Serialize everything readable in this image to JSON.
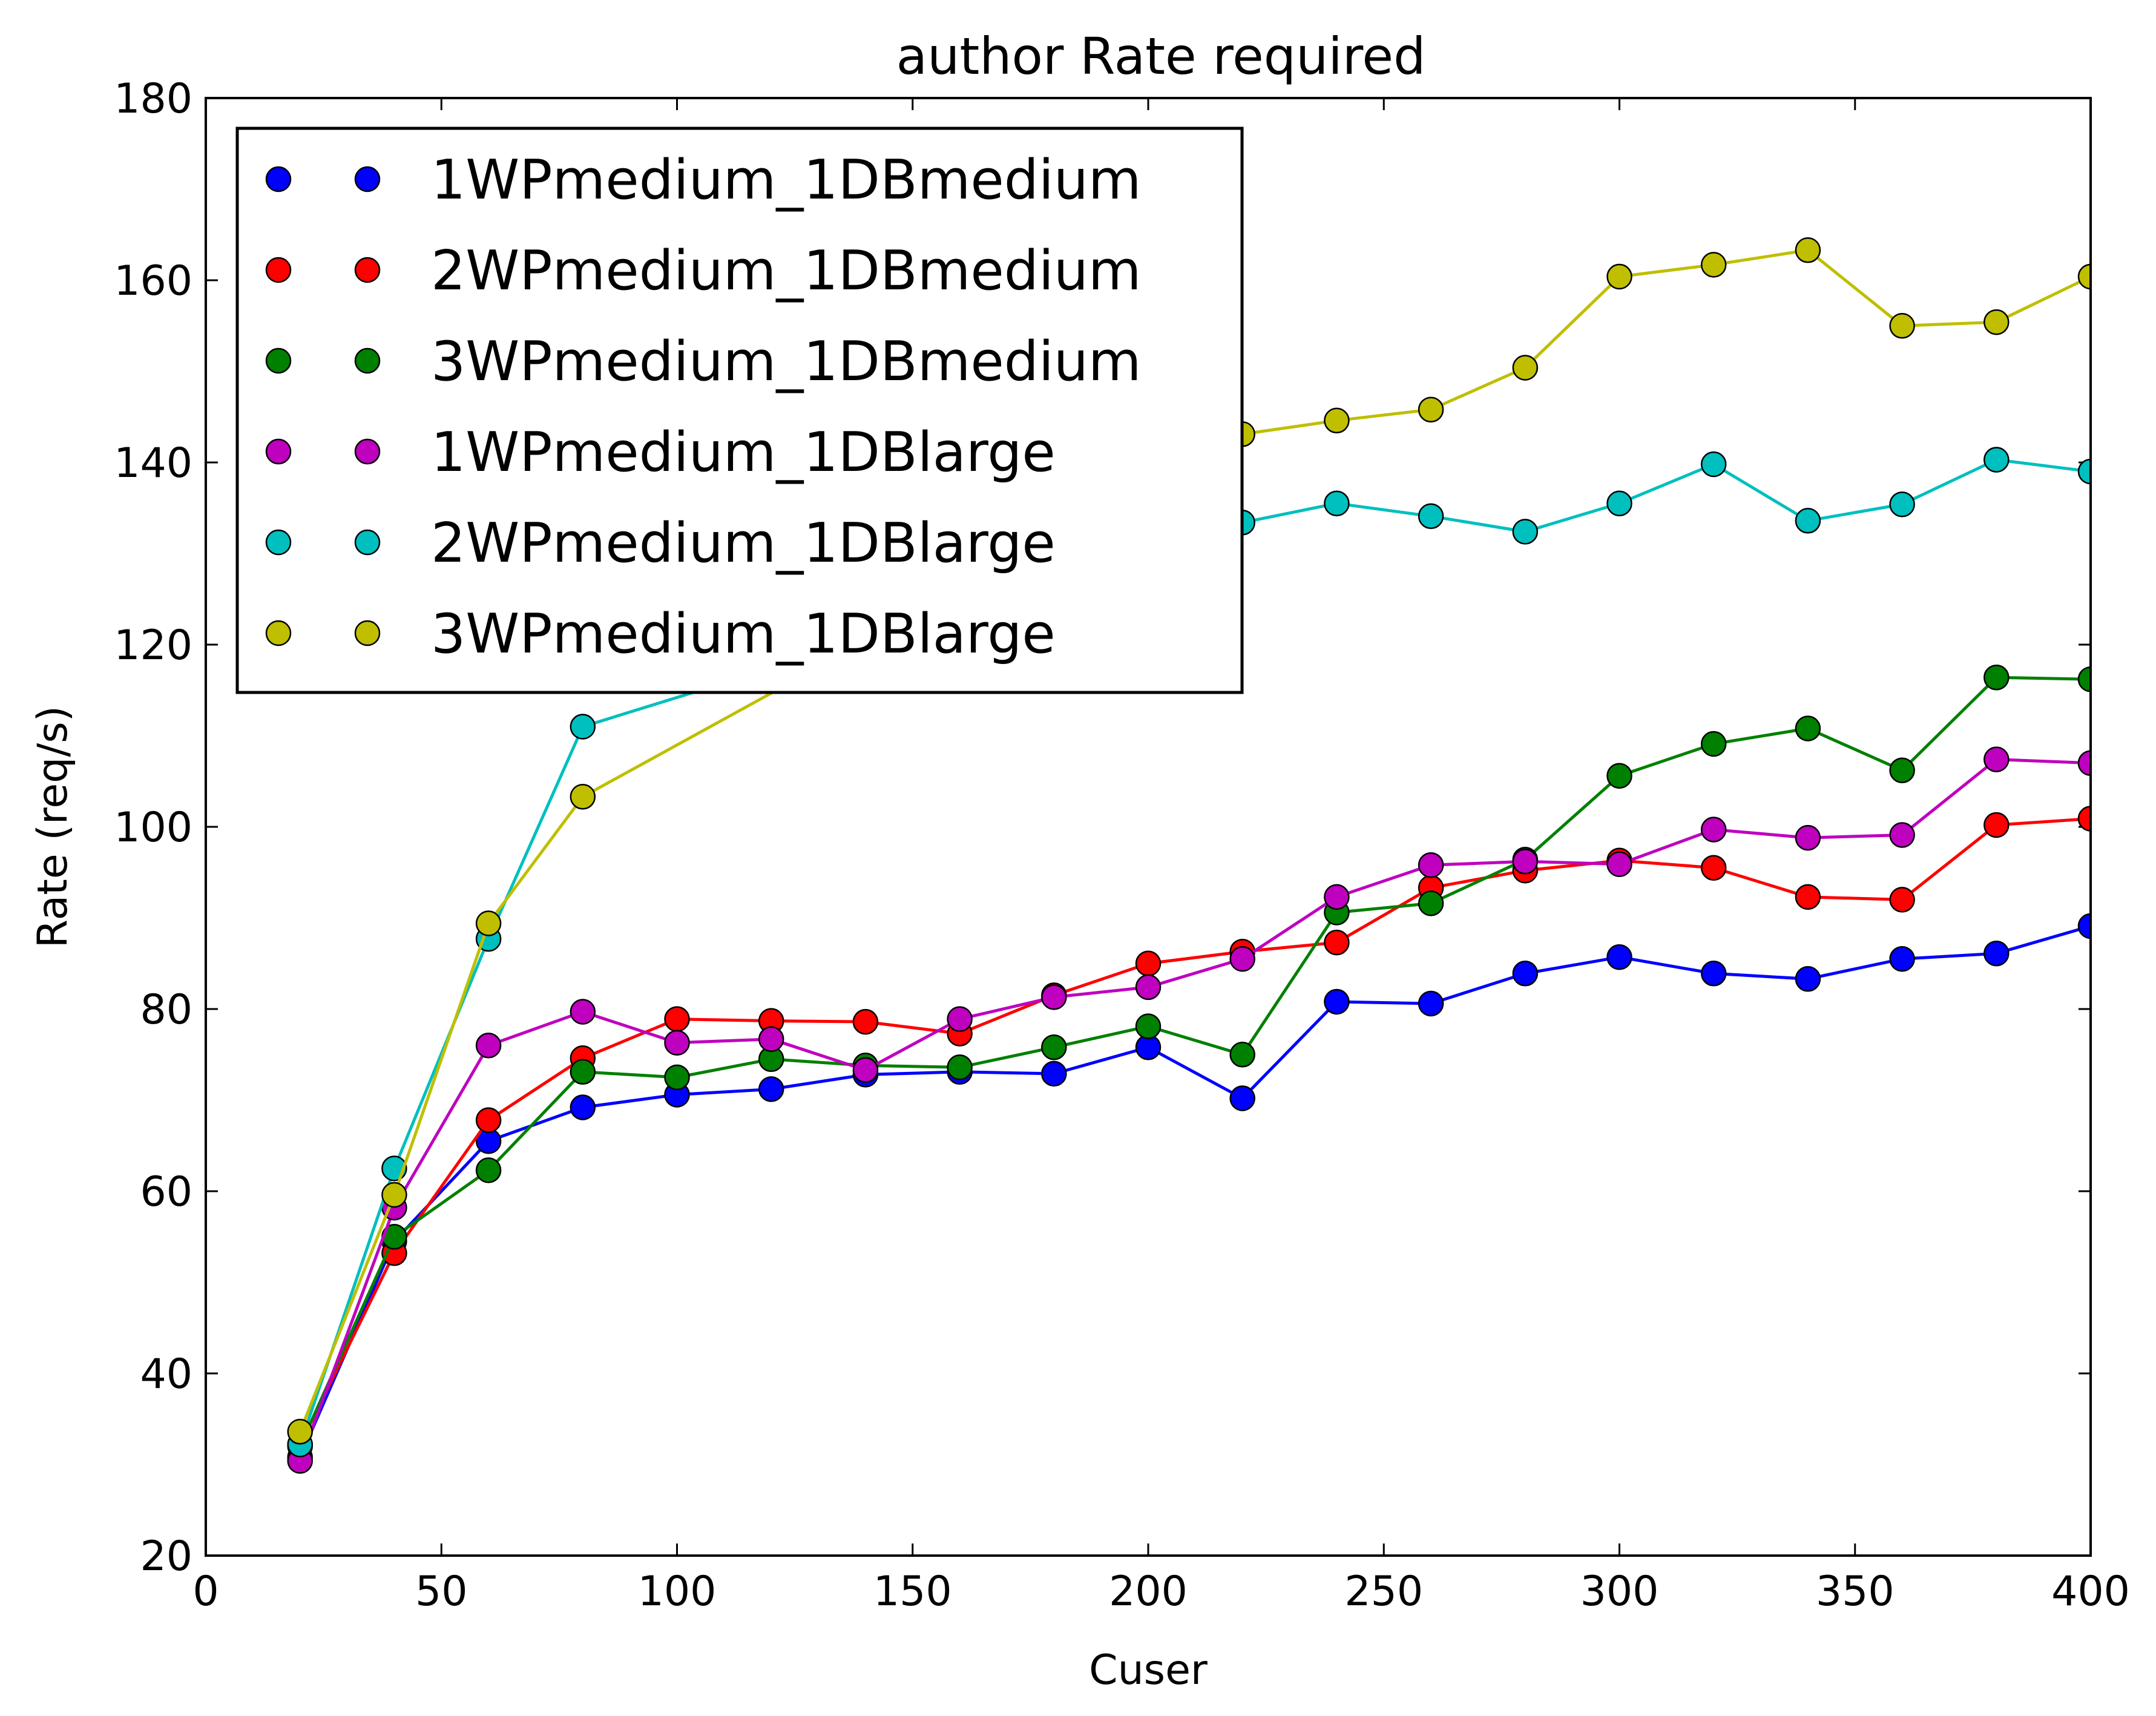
{
  "chart_data": {
    "type": "line",
    "title": "author  Rate required",
    "xlabel": "Cuser",
    "ylabel": "Rate (req/s)",
    "xlim": [
      0,
      400
    ],
    "ylim": [
      20,
      180
    ],
    "xticks": [
      "0",
      "50",
      "100",
      "150",
      "200",
      "250",
      "300",
      "350",
      "400"
    ],
    "yticks": [
      "20",
      "40",
      "60",
      "80",
      "100",
      "120",
      "140",
      "160",
      "180"
    ],
    "grid": false,
    "legend_position": "upper-left",
    "x": [
      20,
      40,
      60,
      80,
      100,
      120,
      140,
      160,
      180,
      200,
      220,
      240,
      260,
      280,
      300,
      320,
      340,
      360,
      380,
      400
    ],
    "series": [
      {
        "name": "1WPmedium_1DBmedium",
        "color": "#0000ff",
        "values": [
          30.8,
          54.5,
          65.5,
          69.2,
          70.6,
          71.2,
          72.8,
          73.1,
          72.9,
          75.8,
          70.2,
          80.8,
          80.6,
          83.9,
          85.7,
          83.9,
          83.3,
          85.5,
          86.1,
          89.1
        ]
      },
      {
        "name": "2WPmedium_1DBmedium",
        "color": "#ff0000",
        "values": [
          32.2,
          53.2,
          67.8,
          74.6,
          78.9,
          78.7,
          78.6,
          77.3,
          81.5,
          85.0,
          86.3,
          87.3,
          93.3,
          95.2,
          96.3,
          95.5,
          92.3,
          92.0,
          100.2,
          100.9
        ]
      },
      {
        "name": "3WPmedium_1DBmedium",
        "color": "#008000",
        "values": [
          32.0,
          55.0,
          62.3,
          73.1,
          72.5,
          74.5,
          73.8,
          73.6,
          75.8,
          78.1,
          75.0,
          90.6,
          91.6,
          96.4,
          105.6,
          109.1,
          110.8,
          106.2,
          116.4,
          116.2
        ]
      },
      {
        "name": "1WPmedium_1DBlarge",
        "color": "#bf00bf",
        "values": [
          30.4,
          58.2,
          76.0,
          79.7,
          76.3,
          76.7,
          73.3,
          78.9,
          81.3,
          82.4,
          85.5,
          92.3,
          95.8,
          96.2,
          95.9,
          99.7,
          98.8,
          99.1,
          107.4,
          107.0
        ]
      },
      {
        "name": "2WPmedium_1DBlarge",
        "color": "#00bfbf",
        "values": [
          32.2,
          62.5,
          87.7,
          111.0,
          null,
          null,
          null,
          null,
          null,
          null,
          133.4,
          135.5,
          134.1,
          132.4,
          135.5,
          139.8,
          133.6,
          135.4,
          140.3,
          139.0
        ]
      },
      {
        "name": "3WPmedium_1DBlarge",
        "color": "#bfbf00",
        "values": [
          33.6,
          59.6,
          89.4,
          103.3,
          null,
          null,
          null,
          null,
          null,
          null,
          143.1,
          144.6,
          145.8,
          150.4,
          160.4,
          161.7,
          163.3,
          155.0,
          155.4,
          160.4
        ]
      }
    ]
  }
}
